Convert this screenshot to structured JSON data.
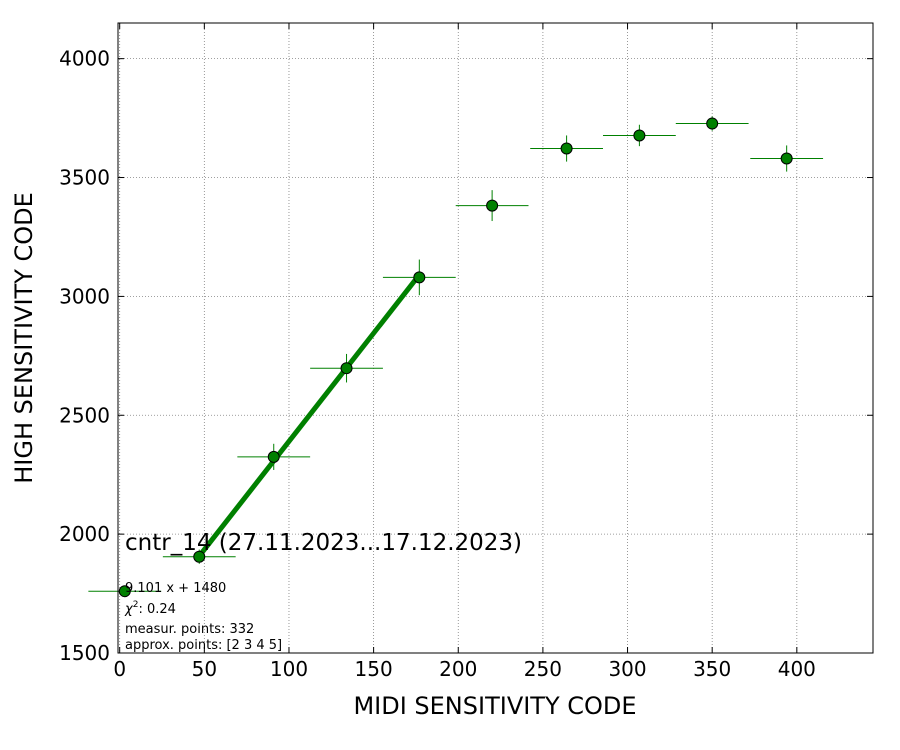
{
  "chart_data": {
    "type": "scatter",
    "title": "",
    "xlabel": "MIDI SENSITIVITY CODE",
    "ylabel": "HIGH SENSITIVITY CODE",
    "xlim": [
      -1,
      445
    ],
    "ylim": [
      1500,
      4150
    ],
    "xticks": [
      0,
      50,
      100,
      150,
      200,
      250,
      300,
      350,
      400
    ],
    "yticks": [
      1500,
      2000,
      2500,
      3000,
      3500,
      4000
    ],
    "grid": true,
    "series": [
      {
        "color": "#008000",
        "x": [
          3,
          47,
          91,
          134,
          177,
          220,
          264,
          307,
          350,
          394
        ],
        "y": [
          1760,
          1905,
          2325,
          2698,
          3080,
          3382,
          3622,
          3677,
          3727,
          3580
        ],
        "x_err": [
          21.5,
          21.5,
          21.5,
          21.5,
          21.5,
          21.5,
          21.5,
          21.5,
          21.5,
          21.5
        ],
        "y_err": [
          15,
          30,
          55,
          60,
          75,
          65,
          55,
          45,
          30,
          55
        ]
      }
    ],
    "fit": {
      "color": "#008000",
      "slope": 9.101,
      "intercept": 1480,
      "x_range": [
        47,
        177
      ]
    },
    "annotations": {
      "label": "cntr_14 (27.11.2023...17.12.2023)",
      "equation": "9.101 x + 1480",
      "chi2_symbol": "χ",
      "chi2_sup": "2",
      "chi2_value": ": 0.24",
      "measur_points": "measur. points: 332",
      "approx_points": "approx. points: [2 3 4 5]"
    }
  }
}
